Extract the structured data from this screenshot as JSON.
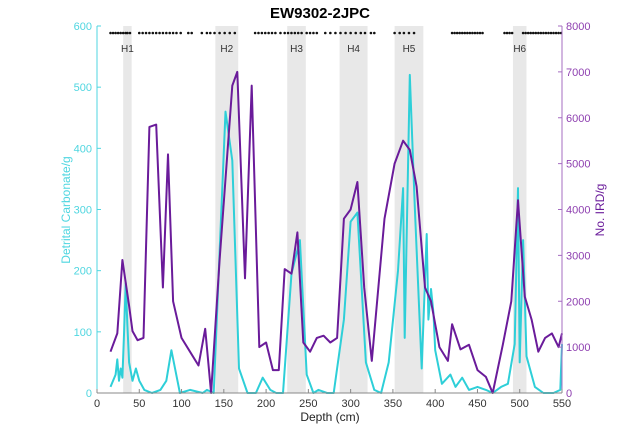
{
  "chart_data": {
    "type": "line",
    "title": "EW9302-2JPC",
    "xlabel": "Depth (cm)",
    "ylabel_left": "Detrital Carbonate/g",
    "ylabel_right": "No. IRD/g",
    "xlim": [
      0,
      550
    ],
    "ylim_left": [
      0,
      600
    ],
    "ylim_right": [
      0,
      8000
    ],
    "x_ticks": [
      "0",
      "50",
      "100",
      "150",
      "200",
      "250",
      "300",
      "350",
      "400",
      "450",
      "500",
      "550"
    ],
    "y_ticks_left": [
      "0",
      "100",
      "200",
      "300",
      "400",
      "500",
      "600"
    ],
    "y_ticks_right": [
      "0",
      "1000",
      "2000",
      "3000",
      "4000",
      "5000",
      "6000",
      "7000",
      "8000"
    ],
    "grid": false,
    "colors": {
      "left": "#2ecfd8",
      "right": "#6a1b9a",
      "band": "#e8e8e8",
      "left_axis": "#4fd6e0",
      "right_axis": "#a56cc1"
    },
    "heinrich_events": [
      {
        "label": "H1",
        "from": 31,
        "to": 41
      },
      {
        "label": "H2",
        "from": 140,
        "to": 167
      },
      {
        "label": "H3",
        "from": 225,
        "to": 247
      },
      {
        "label": "H4",
        "from": 287,
        "to": 320
      },
      {
        "label": "H5",
        "from": 352,
        "to": 386
      },
      {
        "label": "H6",
        "from": 492,
        "to": 508
      }
    ],
    "sample_depths": [
      16,
      19,
      22,
      25,
      28,
      31,
      34,
      36,
      39,
      50,
      54,
      58,
      62,
      66,
      70,
      74,
      78,
      82,
      86,
      90,
      94,
      99,
      108,
      112,
      124,
      130,
      134,
      139,
      145,
      151,
      157,
      163,
      187,
      191,
      195,
      199,
      203,
      207,
      211,
      217,
      222,
      226,
      230,
      234,
      238,
      242,
      248,
      252,
      256,
      260,
      270,
      276,
      282,
      288,
      294,
      300,
      306,
      312,
      317,
      324,
      328,
      352,
      358,
      363,
      369,
      375,
      420,
      423,
      426,
      429,
      432,
      435,
      438,
      441,
      444,
      447,
      450,
      453,
      456,
      482,
      485,
      488,
      491,
      504,
      507,
      510,
      513,
      516,
      519,
      522,
      525,
      528,
      531,
      534,
      537,
      540,
      543,
      546,
      549
    ],
    "series": [
      {
        "name": "Detrital Carbonate/g",
        "axis": "left",
        "x": [
          16,
          22,
          24,
          26,
          28,
          30,
          32,
          34,
          36,
          38,
          42,
          46,
          50,
          56,
          65,
          75,
          82,
          88,
          98,
          110,
          125,
          130,
          138,
          152,
          160,
          168,
          178,
          188,
          196,
          205,
          212,
          220,
          230,
          240,
          248,
          256,
          262,
          272,
          280,
          292,
          300,
          308,
          318,
          328,
          336,
          345,
          356,
          362,
          364,
          370,
          376,
          384,
          390,
          392,
          395,
          398,
          400,
          408,
          418,
          424,
          432,
          440,
          450,
          460,
          468,
          478,
          486,
          494,
          498,
          500,
          504,
          508,
          518,
          528,
          540,
          548,
          550
        ],
        "values": [
          10,
          30,
          55,
          20,
          40,
          25,
          100,
          180,
          110,
          50,
          20,
          40,
          20,
          5,
          0,
          5,
          20,
          70,
          0,
          5,
          0,
          5,
          0,
          460,
          380,
          40,
          0,
          0,
          25,
          5,
          0,
          0,
          195,
          250,
          30,
          0,
          5,
          0,
          0,
          120,
          280,
          295,
          50,
          5,
          0,
          50,
          200,
          335,
          90,
          520,
          300,
          40,
          260,
          120,
          170,
          130,
          70,
          15,
          30,
          10,
          25,
          5,
          10,
          5,
          0,
          10,
          15,
          80,
          335,
          50,
          250,
          60,
          10,
          0,
          0,
          5,
          80
        ]
      },
      {
        "name": "No. IRD/g",
        "axis": "right",
        "x": [
          16,
          24,
          30,
          38,
          42,
          48,
          55,
          62,
          70,
          78,
          84,
          90,
          100,
          110,
          120,
          128,
          135,
          145,
          160,
          166,
          175,
          183,
          192,
          200,
          208,
          215,
          222,
          230,
          237,
          244,
          252,
          260,
          268,
          276,
          284,
          292,
          300,
          308,
          316,
          325,
          340,
          352,
          362,
          370,
          378,
          388,
          395,
          405,
          415,
          420,
          430,
          440,
          450,
          460,
          468,
          480,
          490,
          498,
          506,
          514,
          522,
          530,
          538,
          546,
          550
        ],
        "values": [
          900,
          1300,
          2900,
          1900,
          1350,
          1150,
          1200,
          5800,
          5850,
          2300,
          5200,
          2000,
          1200,
          900,
          600,
          1400,
          0,
          2900,
          6700,
          7000,
          2500,
          6700,
          1000,
          1100,
          500,
          500,
          2700,
          2600,
          3500,
          1100,
          900,
          1200,
          1250,
          1100,
          1200,
          3800,
          4000,
          4600,
          2300,
          700,
          3800,
          5000,
          5500,
          5300,
          4500,
          2300,
          2000,
          1000,
          700,
          1500,
          950,
          1050,
          500,
          350,
          0,
          1050,
          2000,
          4200,
          2100,
          1600,
          900,
          1200,
          1300,
          1000,
          1300
        ]
      }
    ]
  }
}
